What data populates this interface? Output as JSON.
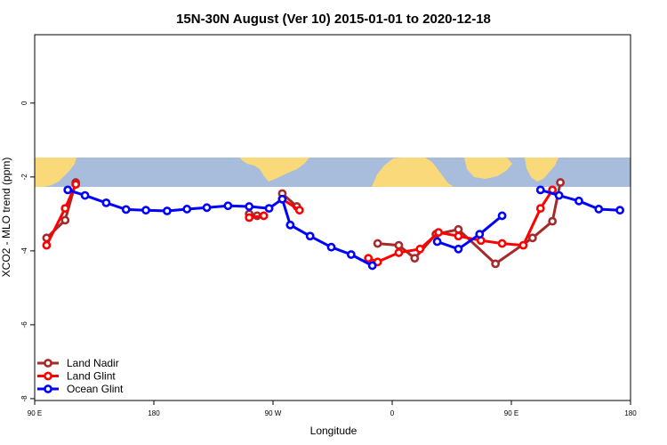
{
  "chart_data": {
    "type": "line",
    "title": "15N-30N August (Ver 10)   2015-01-01 to 2020-12-18",
    "xlabel": "Longitude",
    "ylabel": "XCO2 - MLO trend (ppm)",
    "x_ticks": [
      {
        "value": 90,
        "label": "90 E"
      },
      {
        "value": 180,
        "label": "180"
      },
      {
        "value": 270,
        "label": "90 W"
      },
      {
        "value": 360,
        "label": "0"
      },
      {
        "value": 450,
        "label": "90 E"
      },
      {
        "value": 540,
        "label": "180"
      }
    ],
    "y_ticks": [
      0,
      -2,
      -4,
      -6,
      -8
    ],
    "xlim": [
      90,
      540
    ],
    "ylim": [
      -8.05,
      1.85
    ],
    "grid": false,
    "legend_position": "bottom-left",
    "map_band": {
      "y_top": -1.5,
      "y_bottom": -2.25,
      "ocean_color": "#a8bddc",
      "land_color": "#fad97a"
    },
    "series": [
      {
        "name": "Land Nadir",
        "color": "#a52a2a",
        "segments": [
          [
            [
              99,
              -3.65
            ],
            [
              113,
              -3.17
            ],
            [
              121,
              -2.15
            ]
          ],
          [
            [
              252,
              -3.0
            ],
            [
              258,
              -3.05
            ]
          ],
          [
            [
              277,
              -2.45
            ],
            [
              288,
              -2.8
            ]
          ],
          [
            [
              349,
              -3.8
            ],
            [
              365,
              -3.85
            ],
            [
              377,
              -4.2
            ],
            [
              393,
              -3.55
            ],
            [
              410,
              -3.42
            ],
            [
              438,
              -4.35
            ],
            [
              466,
              -3.65
            ],
            [
              481,
              -3.2
            ],
            [
              487,
              -2.15
            ]
          ]
        ]
      },
      {
        "name": "Land Glint",
        "color": "#ff0000",
        "segments": [
          [
            [
              99,
              -3.85
            ],
            [
              113,
              -2.85
            ],
            [
              121,
              -2.2
            ]
          ],
          [
            [
              252,
              -3.1
            ],
            [
              263,
              -3.05
            ]
          ],
          [
            [
              277,
              -2.6
            ],
            [
              290,
              -2.9
            ]
          ],
          [
            [
              342,
              -4.2
            ],
            [
              349,
              -4.3
            ],
            [
              365,
              -4.05
            ],
            [
              381,
              -3.95
            ],
            [
              395,
              -3.5
            ],
            [
              410,
              -3.6
            ],
            [
              427,
              -3.72
            ],
            [
              443,
              -3.8
            ],
            [
              459,
              -3.85
            ],
            [
              472,
              -2.85
            ],
            [
              481,
              -2.35
            ]
          ]
        ]
      },
      {
        "name": "Ocean Glint",
        "color": "#0000ff",
        "segments": [
          [
            [
              115,
              -2.35
            ],
            [
              128,
              -2.5
            ],
            [
              144,
              -2.7
            ],
            [
              159,
              -2.88
            ],
            [
              174,
              -2.9
            ],
            [
              190,
              -2.92
            ],
            [
              205,
              -2.87
            ],
            [
              220,
              -2.83
            ],
            [
              236,
              -2.78
            ],
            [
              252,
              -2.8
            ],
            [
              267,
              -2.85
            ],
            [
              277,
              -2.6
            ],
            [
              283,
              -3.3
            ],
            [
              298,
              -3.6
            ],
            [
              314,
              -3.9
            ],
            [
              329,
              -4.1
            ],
            [
              345,
              -4.4
            ]
          ],
          [
            [
              394,
              -3.75
            ],
            [
              410,
              -3.95
            ],
            [
              426,
              -3.55
            ],
            [
              443,
              -3.05
            ]
          ],
          [
            [
              472,
              -2.35
            ],
            [
              486,
              -2.5
            ],
            [
              501,
              -2.65
            ],
            [
              516,
              -2.87
            ],
            [
              532,
              -2.9
            ]
          ]
        ]
      }
    ]
  }
}
